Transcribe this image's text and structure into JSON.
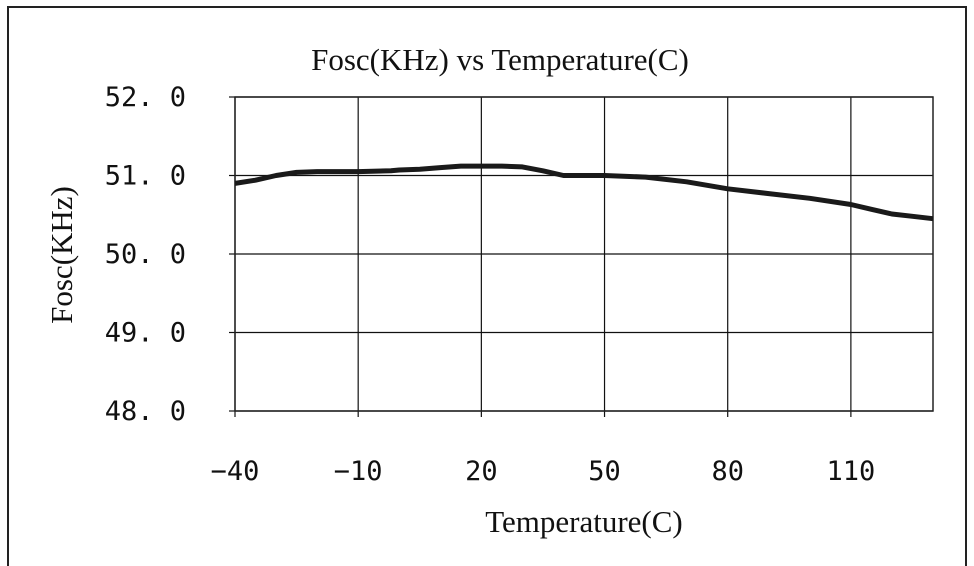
{
  "chart_data": {
    "type": "line",
    "title": "Fosc(KHz) vs Temperature(C)",
    "xlabel": "Temperature(C)",
    "ylabel": "Fosc(KHz)",
    "xlim": [
      -40,
      130
    ],
    "ylim": [
      48.0,
      52.0
    ],
    "x_ticks": [
      -40,
      -10,
      20,
      50,
      80,
      110
    ],
    "x_tick_labels": [
      "-40",
      "-10",
      "20",
      "50",
      "80",
      "110"
    ],
    "y_ticks": [
      48.0,
      49.0,
      50.0,
      51.0,
      52.0
    ],
    "y_tick_labels": [
      "48. 0",
      "49. 0",
      "50. 0",
      "51. 0",
      "52. 0"
    ],
    "grid": true,
    "legend": "none",
    "series": [
      {
        "color": "#1a1a1a",
        "x": [
          -40,
          -35,
          -30,
          -25,
          -20,
          -10,
          -2,
          0,
          5,
          10,
          15,
          20,
          25,
          30,
          35,
          40,
          50,
          60,
          70,
          80,
          90,
          100,
          110,
          115,
          120,
          125,
          130
        ],
        "y": [
          50.9,
          50.94,
          51.0,
          51.04,
          51.05,
          51.05,
          51.06,
          51.07,
          51.08,
          51.1,
          51.12,
          51.12,
          51.12,
          51.11,
          51.06,
          51.0,
          51.0,
          50.98,
          50.92,
          50.83,
          50.77,
          50.71,
          50.63,
          50.57,
          50.51,
          50.48,
          50.45
        ]
      }
    ],
    "colors": {
      "axis": "#222222",
      "grid": "#111111",
      "line": "#1a1a1a",
      "text": "#111111"
    }
  }
}
